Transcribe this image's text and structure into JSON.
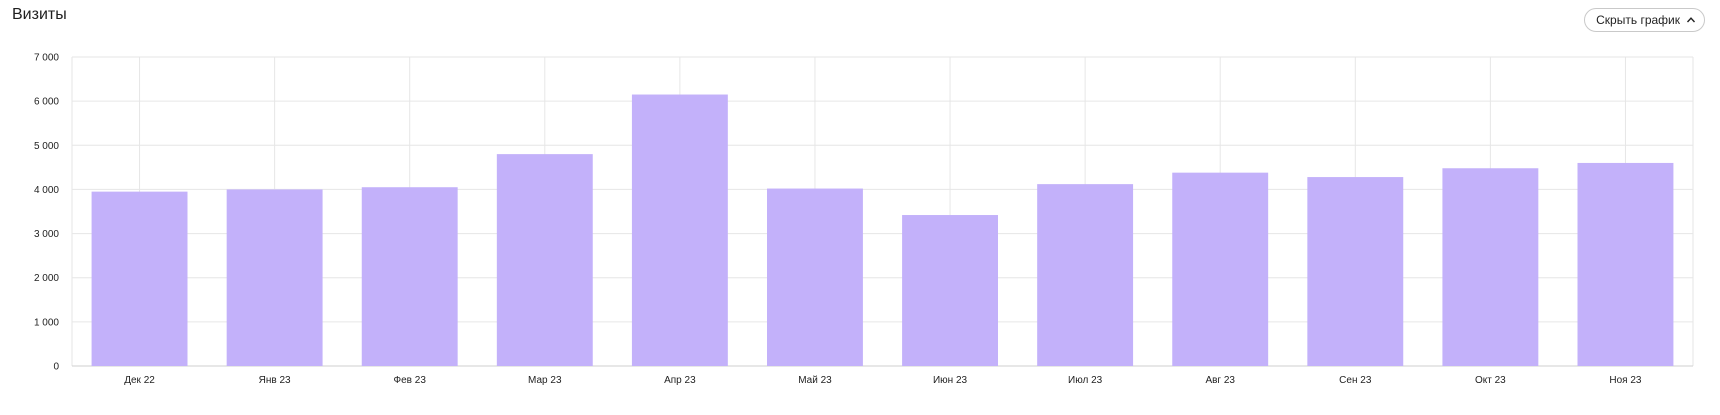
{
  "header": {
    "title": "Визиты",
    "toggle_label": "Скрыть график"
  },
  "colors": {
    "bar": "#c3b1fa",
    "grid": "#e6e6e6",
    "axis": "#cfcfcf"
  },
  "chart_data": {
    "type": "bar",
    "title": "Визиты",
    "xlabel": "",
    "ylabel": "",
    "categories": [
      "Дек 22",
      "Янв 23",
      "Фев 23",
      "Мар 23",
      "Апр 23",
      "Май 23",
      "Июн 23",
      "Июл 23",
      "Авг 23",
      "Сен 23",
      "Окт 23",
      "Ноя 23"
    ],
    "values": [
      3950,
      4000,
      4050,
      4800,
      6150,
      4020,
      3420,
      4120,
      4380,
      4280,
      4480,
      4600
    ],
    "ylim": [
      0,
      7000
    ],
    "yticks": [
      0,
      1000,
      2000,
      3000,
      4000,
      5000,
      6000,
      7000
    ],
    "ytick_labels": [
      "0",
      "1 000",
      "2 000",
      "3 000",
      "4 000",
      "5 000",
      "6 000",
      "7 000"
    ],
    "grid": true,
    "legend": "none"
  }
}
